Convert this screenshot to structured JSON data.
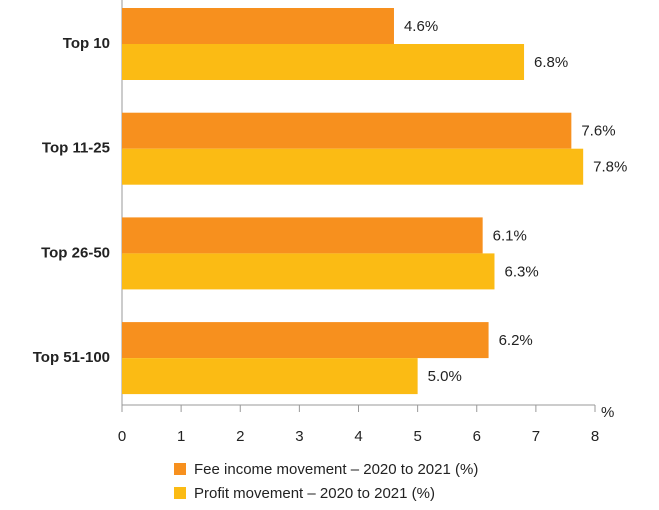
{
  "chart_data": {
    "type": "hbar",
    "categories": [
      "Top 10",
      "Top 11-25",
      "Top 26-50",
      "Top 51-100"
    ],
    "series": [
      {
        "name": "Fee income movement – 2020 to 2021 (%)",
        "color": "#f7901e",
        "values": [
          4.6,
          7.6,
          6.1,
          6.2
        ],
        "value_labels": [
          "4.6%",
          "7.6%",
          "6.1%",
          "6.2%"
        ]
      },
      {
        "name": "Profit movement – 2020 to 2021 (%)",
        "color": "#fbbb14",
        "values": [
          6.8,
          7.8,
          6.3,
          5.0
        ],
        "value_labels": [
          "6.8%",
          "7.8%",
          "6.3%",
          "5.0%"
        ]
      }
    ],
    "x_label": "%",
    "xlim": [
      0,
      8
    ],
    "xticks": [
      0,
      1,
      2,
      3,
      4,
      5,
      6,
      7,
      8
    ],
    "legend": "bottom"
  }
}
